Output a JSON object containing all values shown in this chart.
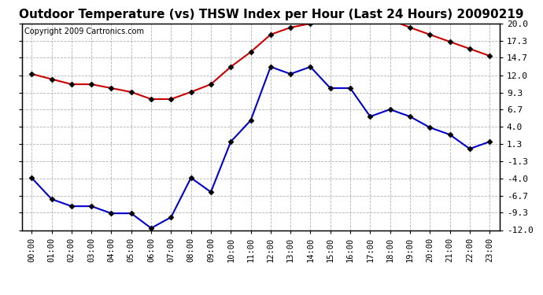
{
  "title": "Outdoor Temperature (vs) THSW Index per Hour (Last 24 Hours) 20090219",
  "copyright": "Copyright 2009 Cartronics.com",
  "hours": [
    "00:00",
    "01:00",
    "02:00",
    "03:00",
    "04:00",
    "05:00",
    "06:00",
    "07:00",
    "08:00",
    "09:00",
    "10:00",
    "11:00",
    "12:00",
    "13:00",
    "14:00",
    "15:00",
    "16:00",
    "17:00",
    "18:00",
    "19:00",
    "20:00",
    "21:00",
    "22:00",
    "23:00"
  ],
  "red_data": [
    12.2,
    11.4,
    10.6,
    10.6,
    10.0,
    9.4,
    8.3,
    8.3,
    9.4,
    10.6,
    13.3,
    15.6,
    18.3,
    19.4,
    20.0,
    20.6,
    20.6,
    20.6,
    20.6,
    19.4,
    18.3,
    17.2,
    16.1,
    15.0
  ],
  "blue_data": [
    -3.9,
    -7.2,
    -8.3,
    -8.3,
    -9.4,
    -9.4,
    -11.7,
    -10.0,
    -3.9,
    -6.1,
    1.7,
    5.0,
    13.3,
    12.2,
    13.3,
    10.0,
    10.0,
    5.6,
    6.7,
    5.6,
    3.9,
    2.8,
    0.6,
    1.7
  ],
  "ylim": [
    -12.0,
    20.0
  ],
  "yticks": [
    -12.0,
    -9.3,
    -6.7,
    -4.0,
    -1.3,
    1.3,
    4.0,
    6.7,
    9.3,
    12.0,
    14.7,
    17.3,
    20.0
  ],
  "red_color": "#cc0000",
  "blue_color": "#0000cc",
  "bg_color": "#ffffff",
  "grid_color": "#aaaaaa",
  "title_fontsize": 11,
  "copyright_fontsize": 7
}
